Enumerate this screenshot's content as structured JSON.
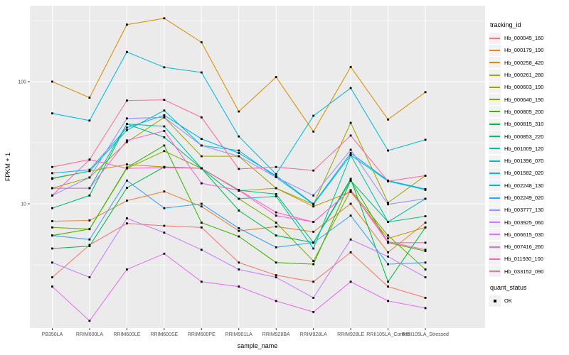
{
  "chart_data": {
    "type": "line",
    "title": "",
    "xlabel": "sample_name",
    "ylabel": "FPKM + 1",
    "yscale": "log10",
    "ylim": [
      1,
      420
    ],
    "yticks": [
      10,
      100
    ],
    "ytick_labels": [
      "10",
      "100"
    ],
    "minor_gridlines": [
      3.162,
      31.62,
      316.2
    ],
    "grid": true,
    "panel_bg": "#EBEBEB",
    "grid_color": "#FFFFFF",
    "point_color": "#000000",
    "axis_text_color": "#4D4D4D",
    "categories": [
      "PB350LA",
      "RRIM600LA",
      "RRIM600LE",
      "RRIM600SE",
      "RRIM600PE",
      "RRIM901LA",
      "RRIM928BA",
      "RRIM928LA",
      "RRIM928LE",
      "RRII105LA_Control",
      "RRII105LA_Stressed"
    ],
    "series": [
      {
        "name": "Hb_000045_160",
        "color": "#F8766D",
        "values": [
          2.5,
          4.6,
          6.9,
          6.6,
          6.4,
          3.3,
          2.6,
          2.3,
          4.0,
          2.1,
          1.7
        ]
      },
      {
        "name": "Hb_000179_190",
        "color": "#EA8331",
        "values": [
          7.2,
          7.3,
          10.6,
          12.6,
          9.5,
          6.0,
          6.5,
          5.9,
          10.0,
          4.0,
          7.0
        ]
      },
      {
        "name": "Hb_000258_420",
        "color": "#D89000",
        "values": [
          100,
          74,
          293,
          330,
          210,
          57,
          109,
          39,
          132,
          49,
          82
        ]
      },
      {
        "name": "Hb_000261_280",
        "color": "#C09B00",
        "values": [
          16.0,
          18.5,
          21,
          20,
          19.5,
          12.8,
          13.4,
          9.5,
          12.5,
          5.2,
          6.4
        ]
      },
      {
        "name": "Hb_000603_190",
        "color": "#A3A500",
        "values": [
          13.4,
          16.4,
          32,
          51,
          24.5,
          24.5,
          13.4,
          9.9,
          46,
          10.2,
          17
        ]
      },
      {
        "name": "Hb_000640_190",
        "color": "#7CAE00",
        "values": [
          6.4,
          6.2,
          19.5,
          27,
          19.5,
          11,
          7.0,
          3.4,
          12.9,
          5.5,
          2.9
        ]
      },
      {
        "name": "Hb_000805_200",
        "color": "#39B600",
        "values": [
          5.5,
          6.2,
          19.8,
          30,
          7.0,
          5.4,
          3.3,
          3.2,
          15.5,
          4.8,
          4.1
        ]
      },
      {
        "name": "Hb_000815_310",
        "color": "#00BB4E",
        "values": [
          4.3,
          4.5,
          13.5,
          20,
          19.5,
          8.8,
          5.5,
          4.8,
          16,
          2.3,
          6.4
        ]
      },
      {
        "name": "Hb_000853_220",
        "color": "#00BF7D",
        "values": [
          9.2,
          11.7,
          45,
          35,
          19.5,
          12.9,
          12,
          4.8,
          15.5,
          7.1,
          7.9
        ]
      },
      {
        "name": "Hb_001009_120",
        "color": "#00C1A3",
        "values": [
          13.4,
          13.4,
          45,
          43,
          19.5,
          11,
          11.5,
          4.3,
          25,
          7.1,
          11
        ]
      },
      {
        "name": "Hb_001396_070",
        "color": "#00BFC4",
        "values": [
          16.2,
          18.5,
          40,
          58,
          30,
          27.3,
          16.5,
          9.9,
          25,
          15.3,
          13
        ]
      },
      {
        "name": "Hb_001582_020",
        "color": "#00BAE0",
        "values": [
          55,
          48,
          175,
          131,
          119,
          35.6,
          17.5,
          52.5,
          88.7,
          27.3,
          33.4
        ]
      },
      {
        "name": "Hb_002248_130",
        "color": "#00B0F6",
        "values": [
          17.8,
          19,
          42,
          53,
          34,
          26,
          17,
          10,
          26,
          15.5,
          13.2
        ]
      },
      {
        "name": "Hb_002249_020",
        "color": "#35A2FF",
        "values": [
          5.5,
          5.1,
          15.5,
          9.2,
          10,
          6.3,
          4.4,
          4.8,
          8.0,
          3.2,
          3.3
        ]
      },
      {
        "name": "Hb_003777_130",
        "color": "#9590FF",
        "values": [
          11.7,
          16.4,
          50,
          51,
          30,
          24.5,
          16.5,
          11.7,
          27.7,
          9.9,
          11
        ]
      },
      {
        "name": "Hb_003925_060",
        "color": "#C77CFF",
        "values": [
          3.3,
          2.5,
          7.6,
          5.8,
          4.2,
          2.9,
          2.5,
          1.7,
          5.1,
          3.7,
          2.5
        ]
      },
      {
        "name": "Hb_006615_030",
        "color": "#E76BF3",
        "values": [
          2.1,
          1.1,
          2.9,
          3.9,
          2.3,
          2.1,
          1.6,
          1.3,
          2.3,
          1.6,
          1.4
        ]
      },
      {
        "name": "Hb_007416_260",
        "color": "#FA62DB",
        "values": [
          13.4,
          13.4,
          33,
          39.5,
          14.7,
          12.9,
          8.0,
          7.1,
          12.9,
          4.8,
          4.8
        ]
      },
      {
        "name": "Hb_011930_100",
        "color": "#FF62BC",
        "values": [
          11.7,
          23,
          19.5,
          19.8,
          19.5,
          13,
          8.5,
          7.1,
          12.9,
          4.9,
          4.2
        ]
      },
      {
        "name": "Hb_033152_090",
        "color": "#FF6A98",
        "values": [
          20,
          23,
          70,
          71,
          51,
          19.3,
          20,
          18.7,
          36.2,
          15.3,
          17
        ]
      }
    ],
    "legend": {
      "position": "right",
      "color_title": "tracking_id",
      "shape_title": "quant_status",
      "shape_items": [
        {
          "label": "OK",
          "marker": "black-square"
        }
      ]
    }
  }
}
